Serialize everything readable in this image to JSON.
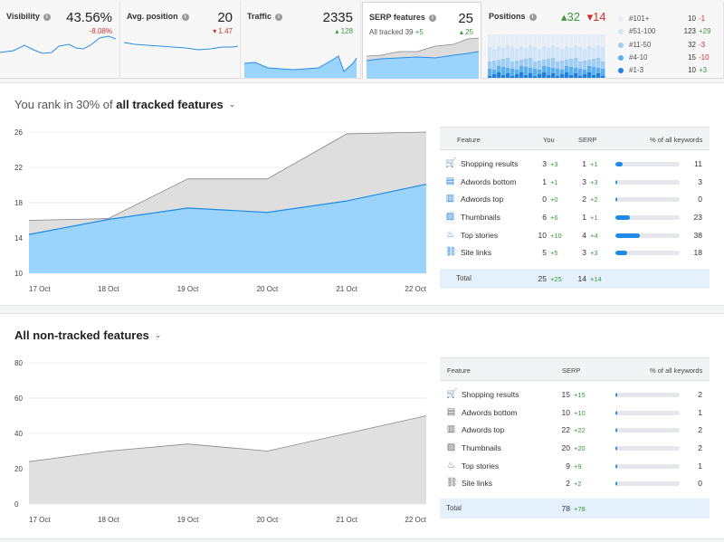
{
  "cards": {
    "visibility": {
      "title": "Visibility",
      "value": "43.56%",
      "delta": "-8.08%"
    },
    "avg_position": {
      "title": "Avg. position",
      "value": "20",
      "delta": "▾ 1.47"
    },
    "traffic": {
      "title": "Traffic",
      "value": "2335",
      "delta": "▴ 128"
    },
    "serp": {
      "title": "SERP features",
      "value": "25",
      "sub_label": "All tracked",
      "sub_value": "39",
      "sub_delta": "+5",
      "delta": "▴ 25"
    },
    "positions": {
      "title": "Positions",
      "up": "▴32",
      "down": "▾14",
      "legend": [
        {
          "label": "#101+",
          "count": "10",
          "delta": "-1",
          "color": "#e6edf5"
        },
        {
          "label": "#51-100",
          "count": "123",
          "delta": "+29",
          "color": "#cfe4f8"
        },
        {
          "label": "#11-50",
          "count": "32",
          "delta": "-3",
          "color": "#9fcdf4"
        },
        {
          "label": "#4-10",
          "count": "15",
          "delta": "-10",
          "color": "#5cb0ef"
        },
        {
          "label": "#1-3",
          "count": "10",
          "delta": "+3",
          "color": "#1f80e0"
        }
      ]
    }
  },
  "panel1": {
    "title_prefix": "You rank in 30% of",
    "title_bold": "all tracked features",
    "chevron": "⌄",
    "headers": {
      "feature": "Feature",
      "you": "You",
      "serp": "SERP",
      "pct": "% of all keywords"
    },
    "rows": [
      {
        "icon": "🛒",
        "icon_name": "shopping-cart-icon",
        "name": "Shopping results",
        "you": "3",
        "you_d": "+3",
        "serp": "1",
        "serp_d": "+1",
        "pct": 11
      },
      {
        "icon": "▤",
        "icon_name": "adwords-bottom-icon",
        "name": "Adwords bottom",
        "you": "1",
        "you_d": "+1",
        "serp": "3",
        "serp_d": "+3",
        "pct": 3
      },
      {
        "icon": "▥",
        "icon_name": "adwords-top-icon",
        "name": "Adwords top",
        "you": "0",
        "you_d": "+0",
        "serp": "2",
        "serp_d": "+2",
        "pct": 0
      },
      {
        "icon": "▨",
        "icon_name": "thumbnails-icon",
        "name": "Thumbnails",
        "you": "6",
        "you_d": "+6",
        "serp": "1",
        "serp_d": "+1",
        "pct": 23
      },
      {
        "icon": "♨",
        "icon_name": "top-stories-icon",
        "name": "Top stories",
        "you": "10",
        "you_d": "+10",
        "serp": "4",
        "serp_d": "+4",
        "pct": 38
      },
      {
        "icon": "⛓",
        "icon_name": "site-links-icon",
        "name": "Site links",
        "you": "5",
        "you_d": "+5",
        "serp": "3",
        "serp_d": "+3",
        "pct": 18
      }
    ],
    "total": {
      "label": "Total",
      "you": "25",
      "you_d": "+25",
      "serp": "14",
      "serp_d": "+14"
    }
  },
  "panel2": {
    "title_bold": "All non-tracked features",
    "chevron": "⌄",
    "headers": {
      "feature": "Feature",
      "serp": "SERP",
      "pct": "% of all keywords"
    },
    "rows": [
      {
        "icon": "🛒",
        "icon_name": "shopping-cart-icon",
        "name": "Shopping results",
        "serp": "15",
        "serp_d": "+15",
        "pct": 2
      },
      {
        "icon": "▤",
        "icon_name": "adwords-bottom-icon",
        "name": "Adwords bottom",
        "serp": "10",
        "serp_d": "+10",
        "pct": 1
      },
      {
        "icon": "▥",
        "icon_name": "adwords-top-icon",
        "name": "Adwords top",
        "serp": "22",
        "serp_d": "+22",
        "pct": 2
      },
      {
        "icon": "▨",
        "icon_name": "thumbnails-icon",
        "name": "Thumbnails",
        "serp": "20",
        "serp_d": "+20",
        "pct": 2
      },
      {
        "icon": "♨",
        "icon_name": "top-stories-icon",
        "name": "Top stories",
        "serp": "9",
        "serp_d": "+9",
        "pct": 1
      },
      {
        "icon": "⛓",
        "icon_name": "site-links-icon",
        "name": "Site links",
        "serp": "2",
        "serp_d": "+2",
        "pct": 0
      }
    ],
    "total": {
      "label": "Total",
      "serp": "78",
      "serp_d": "+78"
    }
  },
  "chart_data": [
    {
      "type": "area",
      "categories": [
        "17 Oct",
        "18 Oct",
        "19 Oct",
        "20 Oct",
        "21 Oct",
        "22 Oct"
      ],
      "yticks": [
        10,
        14,
        18,
        22,
        26
      ],
      "ylim": [
        10,
        26
      ],
      "series": [
        {
          "values": [
            16,
            16.2,
            20.7,
            20.7,
            25.8,
            26
          ],
          "color": "#dedede"
        },
        {
          "values": [
            14.4,
            16.1,
            17.4,
            16.9,
            18.2,
            20.1
          ],
          "color": "#9ad3fb"
        }
      ]
    },
    {
      "type": "area",
      "categories": [
        "17 Oct",
        "18 Oct",
        "19 Oct",
        "20 Oct",
        "21 Oct",
        "22 Oct"
      ],
      "yticks": [
        0,
        20,
        40,
        60,
        80
      ],
      "ylim": [
        0,
        80
      ],
      "series": [
        {
          "values": [
            24,
            30,
            34,
            30,
            40,
            50
          ],
          "color": "#e0e0e0"
        }
      ]
    }
  ]
}
